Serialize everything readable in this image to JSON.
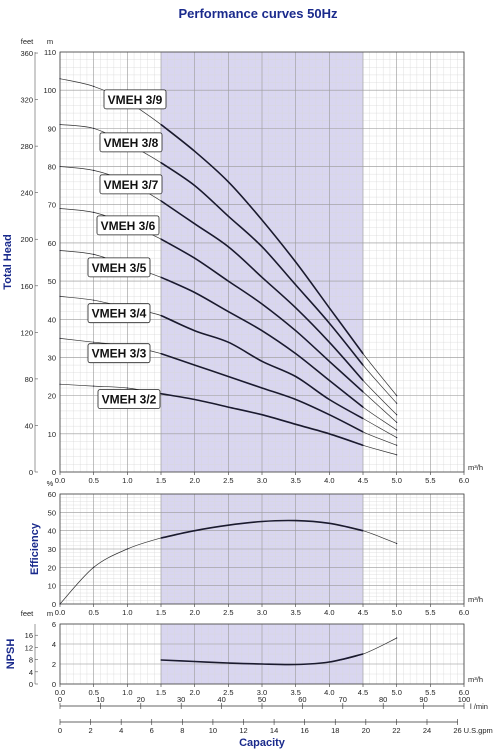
{
  "page_title": "Performance curves 50Hz",
  "colors": {
    "title": "#1a2a8c",
    "band": "#d9d6f0",
    "curve": "#1a1a2e",
    "grid": "#b8b8b8"
  },
  "chart_data": [
    {
      "type": "line",
      "ylabel": "Total Head",
      "unit_primary": "m",
      "unit_secondary": "feet",
      "unit_x": "m³/h",
      "xlim": [
        0,
        6
      ],
      "ylim": [
        0,
        110
      ],
      "x_ticks": [
        "0.0",
        "0.5",
        "1.0",
        "1.5",
        "2.0",
        "2.5",
        "3.0",
        "3.5",
        "4.0",
        "4.5",
        "5.0",
        "5.5",
        "6.0"
      ],
      "y_ticks_m": [
        "0",
        "10",
        "20",
        "30",
        "40",
        "50",
        "60",
        "70",
        "80",
        "90",
        "100",
        "110"
      ],
      "y_ticks_feet": [
        "0",
        "40",
        "80",
        "120",
        "160",
        "200",
        "240",
        "280",
        "320",
        "360"
      ],
      "highlight_band": [
        1.5,
        4.5
      ],
      "grid": true,
      "series": [
        {
          "name": "VMEH 3/9",
          "x": [
            0,
            0.5,
            1.0,
            1.5,
            2.0,
            2.5,
            3.0,
            3.5,
            4.0,
            4.5,
            5.0
          ],
          "values": [
            103,
            101,
            97,
            91,
            84,
            76,
            66,
            55,
            43,
            31,
            20
          ]
        },
        {
          "name": "VMEH 3/8",
          "x": [
            0,
            0.5,
            1.0,
            1.5,
            2.0,
            2.5,
            3.0,
            3.5,
            4.0,
            4.5,
            5.0
          ],
          "values": [
            91,
            90,
            86,
            81,
            75,
            67,
            59,
            49,
            39,
            28,
            18
          ]
        },
        {
          "name": "VMEH 3/7",
          "x": [
            0,
            0.5,
            1.0,
            1.5,
            2.0,
            2.5,
            3.0,
            3.5,
            4.0,
            4.5,
            5.0
          ],
          "values": [
            80,
            79,
            76,
            71,
            65,
            59,
            51,
            43,
            34,
            24,
            15
          ]
        },
        {
          "name": "VMEH 3/6",
          "x": [
            0,
            0.5,
            1.0,
            1.5,
            2.0,
            2.5,
            3.0,
            3.5,
            4.0,
            4.5,
            5.0
          ],
          "values": [
            69,
            68,
            65,
            61,
            56,
            50,
            44,
            37,
            29,
            21,
            13
          ]
        },
        {
          "name": "VMEH 3/5",
          "x": [
            0,
            0.5,
            1.0,
            1.5,
            2.0,
            2.5,
            3.0,
            3.5,
            4.0,
            4.5,
            5.0
          ],
          "values": [
            58,
            57,
            54,
            51,
            47,
            42,
            37,
            31,
            24,
            17,
            11
          ]
        },
        {
          "name": "VMEH 3/4",
          "x": [
            0,
            0.5,
            1.0,
            1.5,
            2.0,
            2.5,
            3.0,
            3.5,
            4.0,
            4.5,
            5.0
          ],
          "values": [
            46,
            45,
            43,
            41,
            37,
            34,
            29,
            25,
            19,
            14,
            9
          ]
        },
        {
          "name": "VMEH 3/3",
          "x": [
            0,
            0.5,
            1.0,
            1.5,
            2.0,
            2.5,
            3.0,
            3.5,
            4.0,
            4.5,
            5.0
          ],
          "values": [
            35,
            34,
            33,
            31,
            28,
            25,
            22,
            19,
            15,
            10.5,
            7
          ]
        },
        {
          "name": "VMEH 3/2",
          "x": [
            0,
            0.5,
            1.0,
            1.5,
            2.0,
            2.5,
            3.0,
            3.5,
            4.0,
            4.5,
            5.0
          ],
          "values": [
            23,
            22.5,
            22,
            20.5,
            19,
            17,
            15,
            12.5,
            10,
            7,
            4.5
          ]
        }
      ]
    },
    {
      "type": "line",
      "ylabel": "Efficiency",
      "unit_primary": "%",
      "unit_x": "m³/h",
      "xlim": [
        0,
        6
      ],
      "ylim": [
        0,
        60
      ],
      "x_ticks": [
        "0.0",
        "0.5",
        "1.0",
        "1.5",
        "2.0",
        "2.5",
        "3.0",
        "3.5",
        "4.0",
        "4.5",
        "5.0",
        "5.5",
        "6.0"
      ],
      "y_ticks": [
        "0",
        "10",
        "20",
        "30",
        "40",
        "50",
        "60"
      ],
      "highlight_band": [
        1.5,
        4.5
      ],
      "grid": true,
      "series": [
        {
          "x": [
            0,
            0.5,
            1.0,
            1.5,
            2.0,
            2.5,
            3.0,
            3.5,
            4.0,
            4.5,
            5.0
          ],
          "values": [
            0,
            20,
            30,
            36,
            40,
            43,
            45,
            45.5,
            44,
            40,
            33
          ]
        }
      ]
    },
    {
      "type": "line",
      "ylabel": "NPSH",
      "unit_primary": "m",
      "unit_secondary": "feet",
      "unit_x": "m³/h",
      "xlim": [
        0,
        6
      ],
      "ylim": [
        0,
        6
      ],
      "x_ticks": [
        "0.0",
        "0.5",
        "1.0",
        "1.5",
        "2.0",
        "2.5",
        "3.0",
        "3.5",
        "4.0",
        "4.5",
        "5.0",
        "5.5",
        "6.0"
      ],
      "y_ticks_m": [
        "0",
        "2",
        "4",
        "6"
      ],
      "y_ticks_feet": [
        "0",
        "4",
        "8",
        "12",
        "16"
      ],
      "highlight_band": [
        1.5,
        4.5
      ],
      "grid": true,
      "series": [
        {
          "x": [
            1.5,
            2.0,
            2.5,
            3.0,
            3.5,
            4.0,
            4.5,
            5.0
          ],
          "values": [
            2.4,
            2.25,
            2.1,
            2.0,
            1.95,
            2.2,
            3.0,
            4.6
          ]
        }
      ]
    },
    {
      "type": "axis",
      "xlabel": "Capacity",
      "scales": [
        {
          "unit": "l /min",
          "range": [
            0,
            100
          ],
          "ticks": [
            "0",
            "10",
            "20",
            "30",
            "40",
            "50",
            "60",
            "70",
            "80",
            "90",
            "100"
          ]
        },
        {
          "unit": "U.S.gpm",
          "range": [
            0,
            26
          ],
          "ticks": [
            "0",
            "2",
            "4",
            "6",
            "8",
            "10",
            "12",
            "14",
            "16",
            "18",
            "20",
            "22",
            "24",
            "26"
          ]
        }
      ]
    }
  ]
}
